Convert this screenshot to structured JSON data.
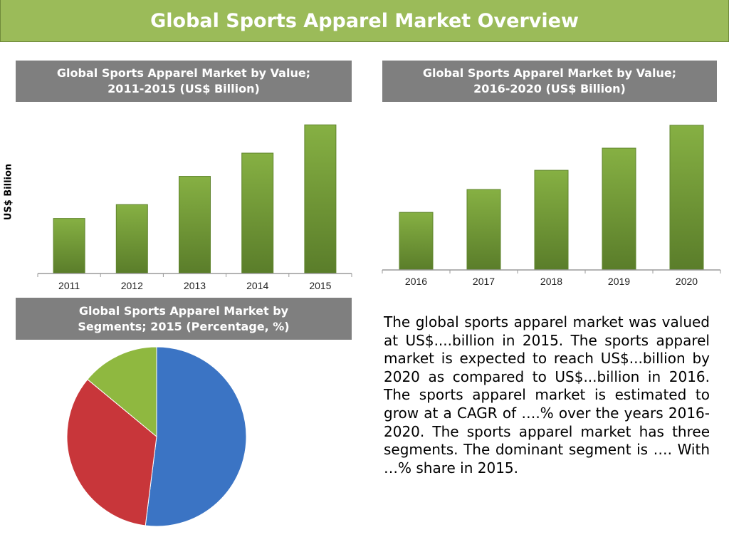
{
  "banner": {
    "title": "Global Sports Apparel Market Overview"
  },
  "panels": {
    "chart1_title": [
      "Global Sports Apparel Market by Value;",
      "2011-2015 (US$ Billion)"
    ],
    "chart2_title": [
      "Global Sports Apparel Market by Value;",
      "2016-2020 (US$ Billion)"
    ],
    "pie_title": [
      "Global Sports Apparel Market by",
      "Segments; 2015 (Percentage, %)"
    ]
  },
  "summary": "The global sports apparel market was valued at US$....billion in 2015. The sports apparel market is expected to reach US$...billion by  2020 as compared to US$...billion in 2016. The sports apparel market is estimated to grow at a CAGR of ….% over the years 2016-2020. The sports apparel market has three segments. The dominant segment is …. With …% share in 2015.",
  "chart_data": [
    {
      "type": "bar",
      "title": "Global Sports Apparel Market by Value; 2011-2015 (US$ Billion)",
      "ylabel": "US$ Billion",
      "categories": [
        "2011",
        "2012",
        "2013",
        "2014",
        "2015"
      ],
      "values": [
        76,
        95,
        134,
        166,
        205
      ],
      "ylim": [
        0,
        220
      ],
      "bar_color": "#77a23a"
    },
    {
      "type": "bar",
      "title": "Global Sports Apparel Market by Value; 2016-2020 (US$ Billion)",
      "categories": [
        "2016",
        "2017",
        "2018",
        "2019",
        "2020"
      ],
      "values": [
        78,
        109,
        135,
        165,
        196
      ],
      "ylim": [
        0,
        220
      ],
      "bar_color": "#77a23a"
    },
    {
      "type": "pie",
      "title": "Global Sports Apparel Market by Segments; 2015 (Percentage, %)",
      "values": [
        52,
        34,
        14
      ],
      "colors": [
        "#3b74c4",
        "#c8363a",
        "#8fb840"
      ]
    }
  ]
}
